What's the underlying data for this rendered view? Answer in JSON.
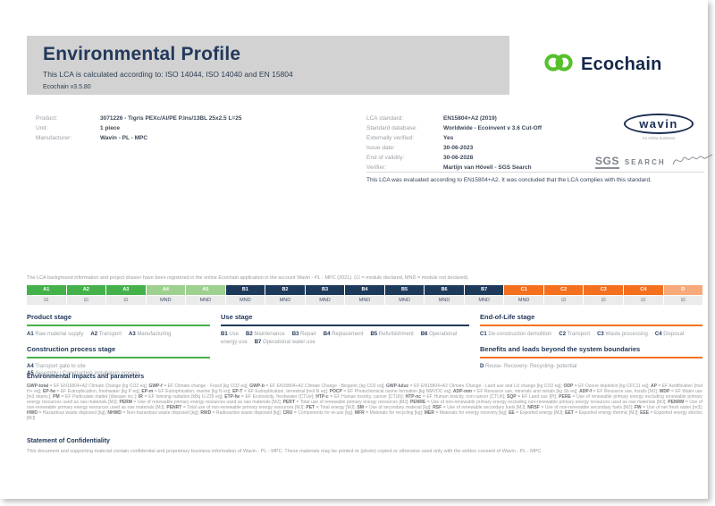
{
  "header": {
    "title": "Environmental Profile",
    "subtitle": "This LCA is calculated according to: ISO 14044, ISO 14040 and EN 15804",
    "version": "Ecochain v3.5.80",
    "logo_text": "Ecochain"
  },
  "product_info": [
    {
      "label": "Product:",
      "value": "3071226 - Tigris PEXc/Al/PE P.Ins/13BL 25x2.5 L=25"
    },
    {
      "label": "Unit:",
      "value": "1 piece"
    },
    {
      "label": "Manufacturer:",
      "value": "Wavin - PL - MPC"
    }
  ],
  "lca_info": [
    {
      "label": "LCA standard:",
      "value": "EN15804+A2 (2019)"
    },
    {
      "label": "Standard database:",
      "value": "Worldwide - Ecoinvent v 3.6 Cut-Off"
    },
    {
      "label": "Externally verified:",
      "value": "Yes"
    },
    {
      "label": "Issue date:",
      "value": "30-06-2023"
    },
    {
      "label": "End of validity:",
      "value": "30-06-2028"
    },
    {
      "label": "Verifier:",
      "value": "Martijn van Hövell - SGS Search"
    }
  ],
  "evaluation_note": "This LCA was evaluated according to EN15804+A2. It was concluded that the LCA complies with this standard.",
  "logos": {
    "wavin": "wavin",
    "wavin_tagline": "An Orbia business",
    "sgs": "SGS",
    "search": "SEARCH"
  },
  "registration_note": "The LCA background information and project dossier have been registered in the online Ecochain application in the account Wavin - PL - MPC (2021). (☑ = module declared, MND = module not declared).",
  "colors": {
    "product": "#45b14b",
    "construction": "#9ed18f",
    "use": "#1d3a5a",
    "eol": "#f4701f",
    "benefits": "#f8a97a",
    "ecochain_green": "#56c02b",
    "navy": "#23395b"
  },
  "modules": [
    {
      "id": "A1",
      "status": "☑",
      "group": "product"
    },
    {
      "id": "A2",
      "status": "☑",
      "group": "product"
    },
    {
      "id": "A3",
      "status": "☑",
      "group": "product"
    },
    {
      "id": "A4",
      "status": "MND",
      "group": "construction"
    },
    {
      "id": "A5",
      "status": "MND",
      "group": "construction"
    },
    {
      "id": "B1",
      "status": "MND",
      "group": "use"
    },
    {
      "id": "B2",
      "status": "MND",
      "group": "use"
    },
    {
      "id": "B3",
      "status": "MND",
      "group": "use"
    },
    {
      "id": "B4",
      "status": "MND",
      "group": "use"
    },
    {
      "id": "B5",
      "status": "MND",
      "group": "use"
    },
    {
      "id": "B6",
      "status": "MND",
      "group": "use"
    },
    {
      "id": "B7",
      "status": "MND",
      "group": "use"
    },
    {
      "id": "C1",
      "status": "MND",
      "group": "eol"
    },
    {
      "id": "C2",
      "status": "☑",
      "group": "eol"
    },
    {
      "id": "C3",
      "status": "☑",
      "group": "eol"
    },
    {
      "id": "C4",
      "status": "☑",
      "group": "eol"
    },
    {
      "id": "D",
      "status": "☑",
      "group": "benefits"
    }
  ],
  "stage_sections": [
    {
      "id": "product",
      "title": "Product stage",
      "color": "#45b14b",
      "column": 1,
      "layout": "inline",
      "items": [
        [
          "A1",
          "Raw material supply"
        ],
        [
          "A2",
          "Transport"
        ],
        [
          "A3",
          "Manufacturing"
        ]
      ]
    },
    {
      "id": "construction",
      "title": "Construction process stage",
      "color": "#45b14b",
      "column": 1,
      "layout": "block",
      "items": [
        [
          "A4",
          "Transport gate to site"
        ],
        [
          "A5",
          "Assembly / Construction installation process"
        ]
      ]
    },
    {
      "id": "use",
      "title": "Use stage",
      "color": "#1d3a5a",
      "column": 2,
      "layout": "inline",
      "items": [
        [
          "B1",
          "Use"
        ],
        [
          "B2",
          "Maintenance"
        ],
        [
          "B3",
          "Repair"
        ],
        [
          "B4",
          "Replacement"
        ],
        [
          "B5",
          "Refurbishment"
        ],
        [
          "B6",
          "Operational energy use"
        ],
        [
          "B7",
          "Operational water use"
        ]
      ]
    },
    {
      "id": "eol",
      "title": "End-of-Life stage",
      "color": "#f4701f",
      "column": 3,
      "layout": "inline",
      "items": [
        [
          "C1",
          "De-construction demolition"
        ],
        [
          "C2",
          "Transport"
        ],
        [
          "C3",
          "Waste processing"
        ],
        [
          "C4",
          "Disposal"
        ]
      ]
    },
    {
      "id": "benefits",
      "title": "Benefits and loads beyond the system boundaries",
      "color": "#f4701f",
      "column": 3,
      "layout": "inline",
      "items": [
        [
          "D",
          "Reuse- Recovery- Recycling- potential"
        ]
      ]
    }
  ],
  "impacts": {
    "heading": "Environmental impacts and parameters",
    "items": [
      [
        "GWP-total",
        "EF EN15804+A2 Climate Change [kg CO2 eq]"
      ],
      [
        "GWP-f",
        "EF Climate change - Fossil [kg CO2 eq]"
      ],
      [
        "GWP-b",
        "EF EN15804+A2 Climate Change - Biogenic [kg CO2 eq]"
      ],
      [
        "GWP-luluc",
        "EF EN15804+A2 Climate Change - Land use and LU change [kg CO2 eq]"
      ],
      [
        "ODP",
        "EF Ozone depletion [kg CFC11 eq]"
      ],
      [
        "AP",
        "EF Acidification [mol H+ eq]"
      ],
      [
        "EP-fw",
        "EF Eutrophication, freshwater [kg P eq]"
      ],
      [
        "EP-m",
        "EF Eutrophication, marine [kg N eq]"
      ],
      [
        "EP-T",
        "EF Eutrophication, terrestrial [mol N eq]"
      ],
      [
        "POCP",
        "EF Photochemical ozone formation [kg NMVOC eq]"
      ],
      [
        "ADP-mm",
        "EF Resource use, minerals and metals [kg Sb eq]"
      ],
      [
        "ADP-f",
        "EF Resource use, fossils [MJ]"
      ],
      [
        "WDP",
        "EF Water use [m3 depriv.]"
      ],
      [
        "PM",
        "EF Particulate matter [disease inc.]"
      ],
      [
        "IR",
        "EF Ionising radiation [kBq U-235 eq]"
      ],
      [
        "ETP-fw",
        "EF Ecotoxicity, freshwater [CTUe]"
      ],
      [
        "HTP-c",
        "EF Human toxicity, cancer [CTUh]"
      ],
      [
        "HTP-nc",
        "EF Human toxicity, non-cancer [CTUh]"
      ],
      [
        "SQP",
        "EF Land use [Pt]"
      ],
      [
        "PERE",
        "Use of renewable primary energy excluding renewable primary energy resources used as raw materials [MJ]"
      ],
      [
        "PERM",
        "Use of renewable primary energy resources used as raw materials [MJ]"
      ],
      [
        "PERT",
        "Total use of renewable primary energy resources [MJ]"
      ],
      [
        "PENRE",
        "Use of non-renewable primary energy excluding non-renewable primary energy resources used as raw materials [MJ]"
      ],
      [
        "PENRM",
        "Use of non-renewable primary energy resources used as raw materials [MJ]"
      ],
      [
        "PENRT",
        "Total use of non-renewable primary energy resources [MJ]"
      ],
      [
        "PET",
        "Total energy [MJ]"
      ],
      [
        "SM",
        "Use of secondary material [kg]"
      ],
      [
        "RSF",
        "Use of renewable secondary fuels [MJ]"
      ],
      [
        "NRSF",
        "Use of non-renewable secondary fuels [MJ]"
      ],
      [
        "FW",
        "Use of net fresh water [m3]"
      ],
      [
        "HWD",
        "Hazardous waste disposed [kg]"
      ],
      [
        "NHWD",
        "Non-hazardous waste disposed [kg]"
      ],
      [
        "RWD",
        "Radioactive waste disposed [kg]"
      ],
      [
        "CRU",
        "Components for re-use [kg]"
      ],
      [
        "MFR",
        "Materials for recycling [kg]"
      ],
      [
        "MER",
        "Materials for energy recovery [kg]"
      ],
      [
        "EE",
        "Exported energy [MJ]"
      ],
      [
        "EET",
        "Exported energy thermic [MJ]"
      ],
      [
        "EEE",
        "Exported energy electric [MJ]"
      ]
    ]
  },
  "confidentiality": {
    "heading": "Statement of Confidentiality",
    "text": "This document and supporting material contain confidential and proprietary business information of Wavin - PL - MPC. These materials may be printed or (photo) copied or otherwise used only with the written consent of Wavin - PL - MPC."
  }
}
